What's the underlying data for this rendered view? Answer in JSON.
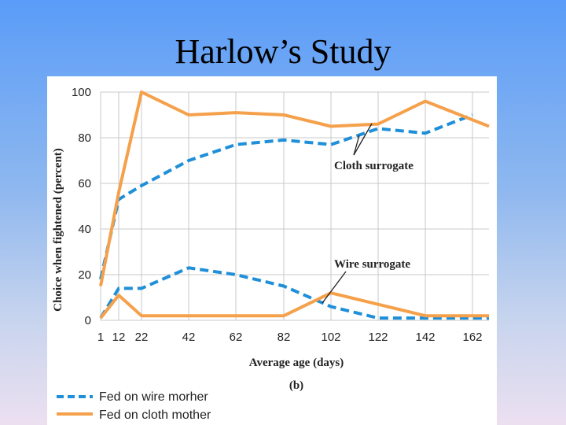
{
  "slide": {
    "title": "Harlow’s Study"
  },
  "chart_data": {
    "type": "line",
    "panel_label": "(b)",
    "xlabel": "Average age (days)",
    "ylabel": "Choice when fightened (percent)",
    "x_ticks": [
      1,
      12,
      22,
      42,
      62,
      82,
      102,
      122,
      142,
      162
    ],
    "y_ticks": [
      0,
      20,
      40,
      60,
      80,
      100
    ],
    "xlim": [
      1,
      166
    ],
    "ylim": [
      0,
      100
    ],
    "grid": true,
    "annotations": [
      {
        "text": "Cloth surrogate"
      },
      {
        "text": "Wire surrogate"
      }
    ],
    "legend": [
      {
        "label": "Fed on wire morher",
        "style": "dashed",
        "color": "#1e8fd8"
      },
      {
        "label": "Fed on cloth mother",
        "style": "solid",
        "color": "#f5a04a"
      }
    ],
    "series": [
      {
        "name": "Fed on wire morher",
        "surrogate": "cloth",
        "style": "dashed",
        "color": "#1e8fd8",
        "x": [
          1,
          12,
          22,
          42,
          62,
          82,
          102,
          122,
          142,
          162
        ],
        "y": [
          18,
          53,
          59,
          70,
          77,
          79,
          77,
          84,
          82,
          90
        ]
      },
      {
        "name": "Fed on cloth mother",
        "surrogate": "cloth",
        "style": "solid",
        "color": "#f5a04a",
        "x": [
          1,
          12,
          22,
          42,
          62,
          82,
          102,
          122,
          142,
          166
        ],
        "y": [
          15,
          56,
          100,
          90,
          91,
          90,
          85,
          86,
          96,
          85
        ]
      },
      {
        "name": "Fed on wire morher",
        "surrogate": "wire",
        "style": "dashed",
        "color": "#1e8fd8",
        "x": [
          1,
          12,
          22,
          42,
          62,
          82,
          102,
          122,
          142,
          166
        ],
        "y": [
          1,
          14,
          14,
          23,
          20,
          15,
          6,
          1,
          1,
          1
        ]
      },
      {
        "name": "Fed on cloth mother",
        "surrogate": "wire",
        "style": "solid",
        "color": "#f5a04a",
        "x": [
          1,
          12,
          22,
          42,
          62,
          82,
          102,
          122,
          142,
          166
        ],
        "y": [
          1,
          11,
          2,
          2,
          2,
          2,
          12,
          7,
          2,
          2
        ]
      }
    ]
  }
}
